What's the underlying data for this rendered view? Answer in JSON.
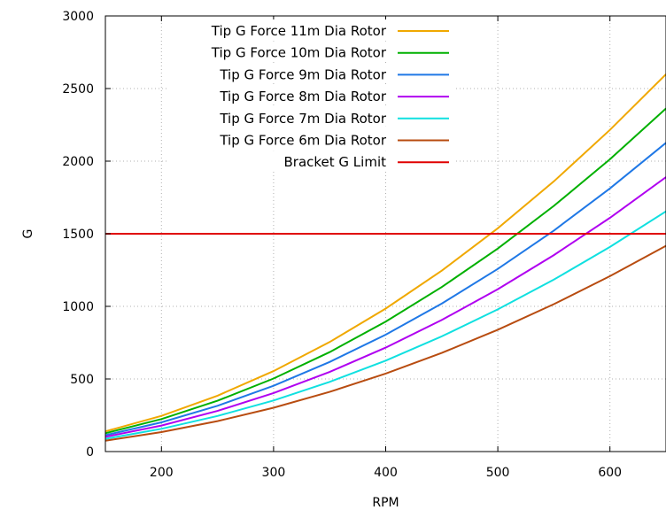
{
  "chart_data": {
    "type": "line",
    "title": "",
    "xlabel": "RPM",
    "ylabel": "G",
    "xlim": [
      150,
      650
    ],
    "ylim": [
      0,
      3000
    ],
    "x_ticks": [
      200,
      300,
      400,
      500,
      600
    ],
    "y_ticks": [
      0,
      500,
      1000,
      1500,
      2000,
      2500,
      3000
    ],
    "grid": true,
    "legend_position": "top-left",
    "x": [
      150,
      200,
      250,
      300,
      350,
      400,
      450,
      500,
      550,
      600,
      650
    ],
    "series": [
      {
        "name": "Tip G Force 11m Dia Rotor",
        "color": "#f0a800",
        "values": [
          139,
          246,
          385,
          554,
          754,
          985,
          1246,
          1538,
          1861,
          2215,
          2599
        ]
      },
      {
        "name": "Tip G Force 10m Dia Rotor",
        "color": "#00b000",
        "values": [
          126,
          224,
          350,
          503,
          685,
          895,
          1133,
          1398,
          1692,
          2013,
          2363
        ]
      },
      {
        "name": "Tip G Force 9m Dia Rotor",
        "color": "#1f78e6",
        "values": [
          113,
          201,
          315,
          453,
          617,
          805,
          1019,
          1258,
          1522,
          1812,
          2126
        ]
      },
      {
        "name": "Tip G Force 8m Dia Rotor",
        "color": "#b000f0",
        "values": [
          101,
          179,
          280,
          403,
          548,
          716,
          906,
          1118,
          1353,
          1610,
          1890
        ]
      },
      {
        "name": "Tip G Force 7m Dia Rotor",
        "color": "#10e0e0",
        "values": [
          88,
          157,
          245,
          352,
          480,
          626,
          793,
          979,
          1184,
          1409,
          1654
        ]
      },
      {
        "name": "Tip G Force 6m Dia Rotor",
        "color": "#b84c10",
        "values": [
          75,
          134,
          210,
          302,
          411,
          537,
          679,
          839,
          1015,
          1208,
          1417
        ]
      },
      {
        "name": "Bracket G Limit",
        "color": "#e00000",
        "values": [
          1500,
          1500,
          1500,
          1500,
          1500,
          1500,
          1500,
          1500,
          1500,
          1500,
          1500
        ]
      }
    ]
  }
}
